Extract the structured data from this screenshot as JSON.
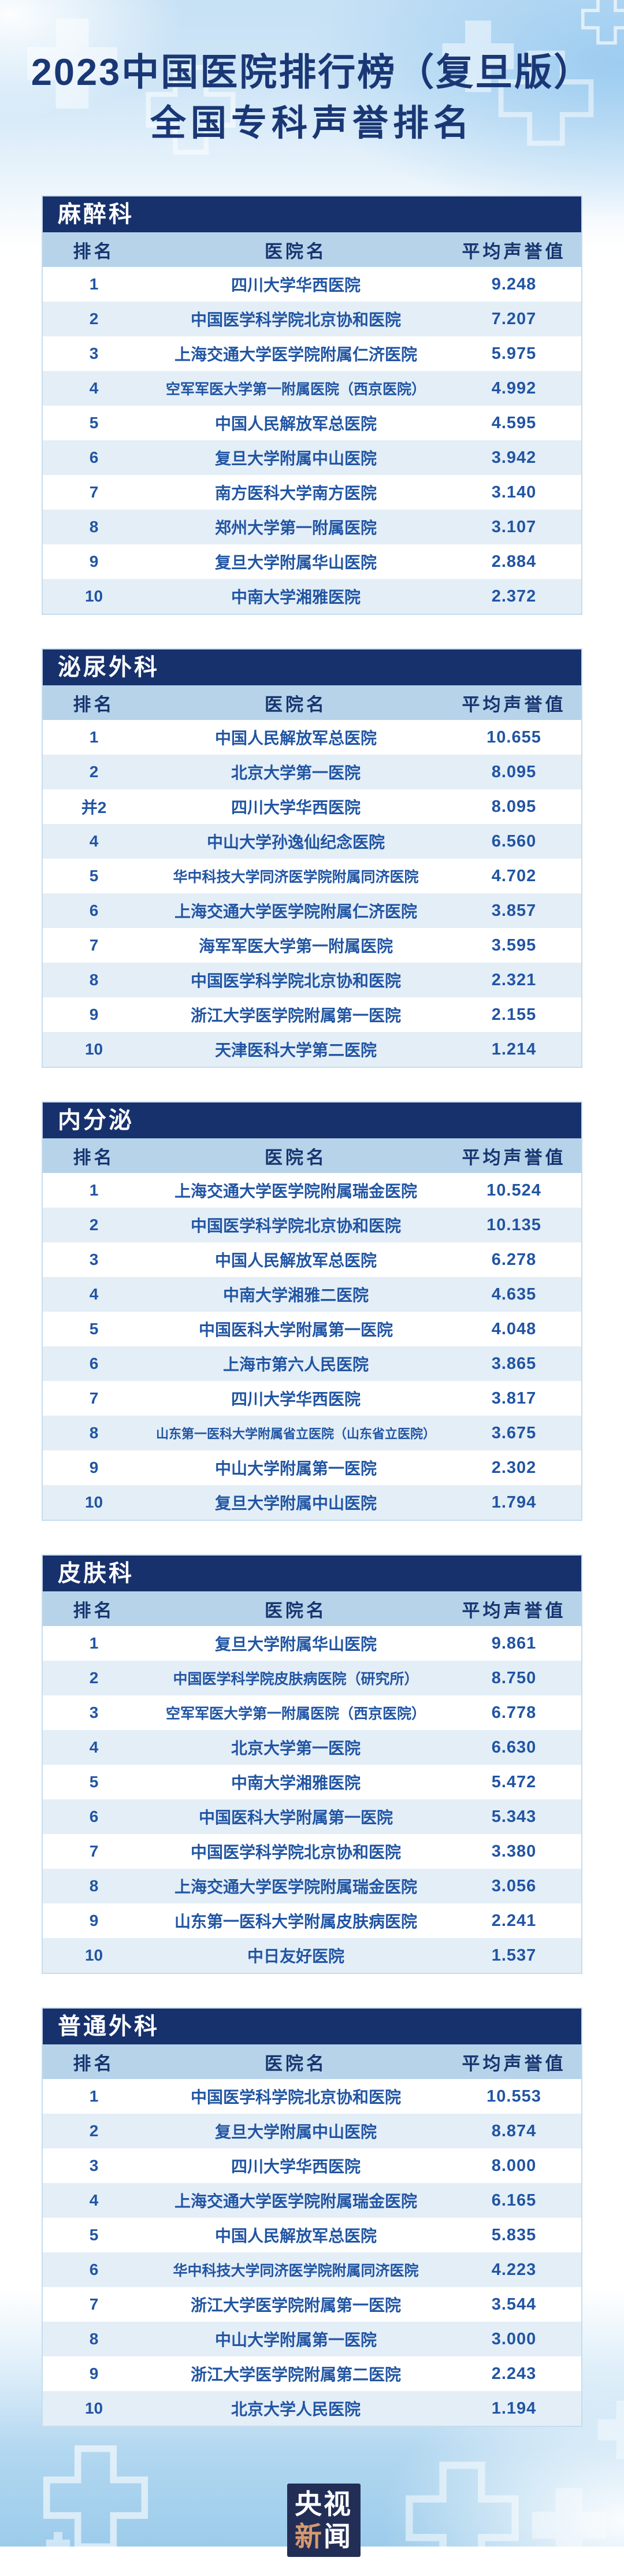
{
  "title": {
    "line1": "2023中国医院排行榜（复旦版）",
    "line2": "全国专科声誉排名"
  },
  "columns": {
    "rank": "排名",
    "hospital": "医院名",
    "score": "平均声誉值"
  },
  "colors": {
    "section_bar_navy": "#17316d",
    "column_header_band": "#b7d3e9",
    "alt_row_blue": "#e4eef7",
    "row_text_blue": "#2155a3",
    "title_navy": "#1a3775",
    "logo_bg_navy": "#232e57",
    "logo_accent_orange": "#d69a6e"
  },
  "chart_data": [
    {
      "type": "table",
      "title": "麻醉科",
      "columns": [
        "排名",
        "医院名",
        "平均声誉值"
      ],
      "rows": [
        {
          "rank": "1",
          "hospital": "四川大学华西医院",
          "score": "9.248"
        },
        {
          "rank": "2",
          "hospital": "中国医学科学院北京协和医院",
          "score": "7.207"
        },
        {
          "rank": "3",
          "hospital": "上海交通大学医学院附属仁济医院",
          "score": "5.975"
        },
        {
          "rank": "4",
          "hospital": "空军军医大学第一附属医院（西京医院）",
          "score": "4.992"
        },
        {
          "rank": "5",
          "hospital": "中国人民解放军总医院",
          "score": "4.595"
        },
        {
          "rank": "6",
          "hospital": "复旦大学附属中山医院",
          "score": "3.942"
        },
        {
          "rank": "7",
          "hospital": "南方医科大学南方医院",
          "score": "3.140"
        },
        {
          "rank": "8",
          "hospital": "郑州大学第一附属医院",
          "score": "3.107"
        },
        {
          "rank": "9",
          "hospital": "复旦大学附属华山医院",
          "score": "2.884"
        },
        {
          "rank": "10",
          "hospital": "中南大学湘雅医院",
          "score": "2.372"
        }
      ]
    },
    {
      "type": "table",
      "title": "泌尿外科",
      "columns": [
        "排名",
        "医院名",
        "平均声誉值"
      ],
      "rows": [
        {
          "rank": "1",
          "hospital": "中国人民解放军总医院",
          "score": "10.655"
        },
        {
          "rank": "2",
          "hospital": "北京大学第一医院",
          "score": "8.095"
        },
        {
          "rank": "并2",
          "hospital": "四川大学华西医院",
          "score": "8.095"
        },
        {
          "rank": "4",
          "hospital": "中山大学孙逸仙纪念医院",
          "score": "6.560"
        },
        {
          "rank": "5",
          "hospital": "华中科技大学同济医学院附属同济医院",
          "score": "4.702"
        },
        {
          "rank": "6",
          "hospital": "上海交通大学医学院附属仁济医院",
          "score": "3.857"
        },
        {
          "rank": "7",
          "hospital": "海军军医大学第一附属医院",
          "score": "3.595"
        },
        {
          "rank": "8",
          "hospital": "中国医学科学院北京协和医院",
          "score": "2.321"
        },
        {
          "rank": "9",
          "hospital": "浙江大学医学院附属第一医院",
          "score": "2.155"
        },
        {
          "rank": "10",
          "hospital": "天津医科大学第二医院",
          "score": "1.214"
        }
      ]
    },
    {
      "type": "table",
      "title": "内分泌",
      "columns": [
        "排名",
        "医院名",
        "平均声誉值"
      ],
      "rows": [
        {
          "rank": "1",
          "hospital": "上海交通大学医学院附属瑞金医院",
          "score": "10.524"
        },
        {
          "rank": "2",
          "hospital": "中国医学科学院北京协和医院",
          "score": "10.135"
        },
        {
          "rank": "3",
          "hospital": "中国人民解放军总医院",
          "score": "6.278"
        },
        {
          "rank": "4",
          "hospital": "中南大学湘雅二医院",
          "score": "4.635"
        },
        {
          "rank": "5",
          "hospital": "中国医科大学附属第一医院",
          "score": "4.048"
        },
        {
          "rank": "6",
          "hospital": "上海市第六人民医院",
          "score": "3.865"
        },
        {
          "rank": "7",
          "hospital": "四川大学华西医院",
          "score": "3.817"
        },
        {
          "rank": "8",
          "hospital": "山东第一医科大学附属省立医院（山东省立医院）",
          "score": "3.675"
        },
        {
          "rank": "9",
          "hospital": "中山大学附属第一医院",
          "score": "2.302"
        },
        {
          "rank": "10",
          "hospital": "复旦大学附属中山医院",
          "score": "1.794"
        }
      ]
    },
    {
      "type": "table",
      "title": "皮肤科",
      "columns": [
        "排名",
        "医院名",
        "平均声誉值"
      ],
      "rows": [
        {
          "rank": "1",
          "hospital": "复旦大学附属华山医院",
          "score": "9.861"
        },
        {
          "rank": "2",
          "hospital": "中国医学科学院皮肤病医院（研究所）",
          "score": "8.750"
        },
        {
          "rank": "3",
          "hospital": "空军军医大学第一附属医院（西京医院）",
          "score": "6.778"
        },
        {
          "rank": "4",
          "hospital": "北京大学第一医院",
          "score": "6.630"
        },
        {
          "rank": "5",
          "hospital": "中南大学湘雅医院",
          "score": "5.472"
        },
        {
          "rank": "6",
          "hospital": "中国医科大学附属第一医院",
          "score": "5.343"
        },
        {
          "rank": "7",
          "hospital": "中国医学科学院北京协和医院",
          "score": "3.380"
        },
        {
          "rank": "8",
          "hospital": "上海交通大学医学院附属瑞金医院",
          "score": "3.056"
        },
        {
          "rank": "9",
          "hospital": "山东第一医科大学附属皮肤病医院",
          "score": "2.241"
        },
        {
          "rank": "10",
          "hospital": "中日友好医院",
          "score": "1.537"
        }
      ]
    },
    {
      "type": "table",
      "title": "普通外科",
      "columns": [
        "排名",
        "医院名",
        "平均声誉值"
      ],
      "rows": [
        {
          "rank": "1",
          "hospital": "中国医学科学院北京协和医院",
          "score": "10.553"
        },
        {
          "rank": "2",
          "hospital": "复旦大学附属中山医院",
          "score": "8.874"
        },
        {
          "rank": "3",
          "hospital": "四川大学华西医院",
          "score": "8.000"
        },
        {
          "rank": "4",
          "hospital": "上海交通大学医学院附属瑞金医院",
          "score": "6.165"
        },
        {
          "rank": "5",
          "hospital": "中国人民解放军总医院",
          "score": "5.835"
        },
        {
          "rank": "6",
          "hospital": "华中科技大学同济医学院附属同济医院",
          "score": "4.223"
        },
        {
          "rank": "7",
          "hospital": "浙江大学医学院附属第一医院",
          "score": "3.544"
        },
        {
          "rank": "8",
          "hospital": "中山大学附属第一医院",
          "score": "3.000"
        },
        {
          "rank": "9",
          "hospital": "浙江大学医学院附属第二医院",
          "score": "2.243"
        },
        {
          "rank": "10",
          "hospital": "北京大学人民医院",
          "score": "1.194"
        }
      ]
    }
  ],
  "footer": {
    "logo_top": "央视",
    "logo_accent": "新",
    "logo_rest": "闻"
  }
}
